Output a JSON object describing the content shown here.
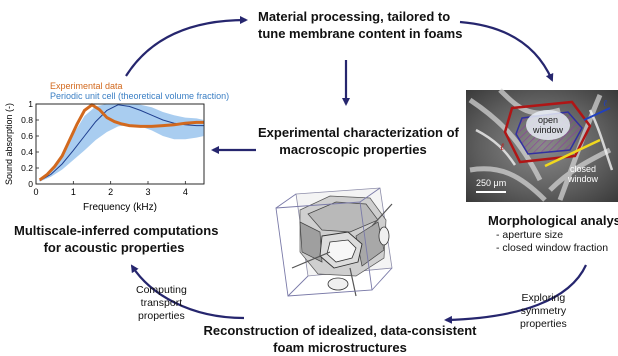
{
  "steps": {
    "processing": {
      "line1": "Material processing, tailored to",
      "line2": "tune membrane content in foams"
    },
    "characterization": {
      "line1": "Experimental characterization of",
      "line2": "macroscopic properties"
    },
    "morphology": {
      "title": "Morphological analysis",
      "item1": "- aperture size",
      "item2": "- closed window fraction"
    },
    "reconstruction": {
      "line1": "Reconstruction of idealized, data-consistent",
      "line2": "foam microstructures"
    },
    "computation": {
      "line1": "Multiscale-inferred computations",
      "line2": "for acoustic properties"
    }
  },
  "arrow_labels": {
    "symmetry": [
      "Exploring",
      "symmetry",
      "properties"
    ],
    "transport": [
      "Computing",
      "transport",
      "properties"
    ]
  },
  "micrograph": {
    "open_label": [
      "open",
      "window"
    ],
    "closed_label": [
      "closed",
      "window"
    ],
    "scale_bar": "250 μm",
    "symbol_left": "ℓ",
    "symbol_right": "ℓ"
  },
  "chart_data": {
    "type": "line",
    "title": "",
    "xlabel": "Frequency (kHz)",
    "ylabel": "Sound absorption (-)",
    "xlim": [
      0,
      4.5
    ],
    "ylim": [
      0,
      1
    ],
    "xticks": [
      "0",
      "1",
      "2",
      "3",
      "4"
    ],
    "yticks": [
      "0",
      "0.2",
      "0.4",
      "0.6",
      "0.8",
      "1"
    ],
    "legend": [
      "Experimental data",
      "Periodic unit cell (theoretical volume fraction)"
    ],
    "colors": {
      "experimental": "#d2691e",
      "periodic_line": "#1f3f8f",
      "periodic_band": "#a9cdf0"
    },
    "series": [
      {
        "name": "Experimental data",
        "x": [
          0.1,
          0.3,
          0.5,
          0.7,
          0.9,
          1.1,
          1.3,
          1.5,
          1.7,
          1.9,
          2.1,
          2.3,
          2.5,
          2.8,
          3.1,
          3.4,
          3.7,
          4.0,
          4.3,
          4.5
        ],
        "y": [
          0.05,
          0.12,
          0.22,
          0.35,
          0.55,
          0.75,
          0.92,
          0.99,
          0.93,
          0.83,
          0.78,
          0.75,
          0.73,
          0.72,
          0.72,
          0.73,
          0.74,
          0.76,
          0.77,
          0.77
        ]
      },
      {
        "name": "Periodic unit cell (theoretical volume fraction)",
        "x": [
          0.1,
          0.4,
          0.7,
          1.0,
          1.3,
          1.6,
          1.9,
          2.2,
          2.5,
          2.8,
          3.1,
          3.4,
          3.7,
          4.0,
          4.3,
          4.5
        ],
        "y": [
          0.04,
          0.12,
          0.25,
          0.42,
          0.6,
          0.78,
          0.92,
          0.99,
          0.97,
          0.92,
          0.86,
          0.8,
          0.76,
          0.74,
          0.73,
          0.73
        ]
      }
    ],
    "band": {
      "x": [
        0.1,
        0.4,
        0.7,
        1.0,
        1.3,
        1.6,
        1.9,
        2.2,
        2.5,
        2.8,
        3.1,
        3.4,
        3.7,
        4.0,
        4.3,
        4.5
      ],
      "low": [
        0.03,
        0.09,
        0.18,
        0.3,
        0.42,
        0.55,
        0.65,
        0.72,
        0.74,
        0.72,
        0.67,
        0.6,
        0.56,
        0.56,
        0.58,
        0.6
      ],
      "high": [
        0.06,
        0.18,
        0.38,
        0.62,
        0.85,
        0.97,
        1.0,
        1.0,
        1.0,
        0.99,
        0.96,
        0.9,
        0.86,
        0.83,
        0.82,
        0.8
      ]
    }
  }
}
